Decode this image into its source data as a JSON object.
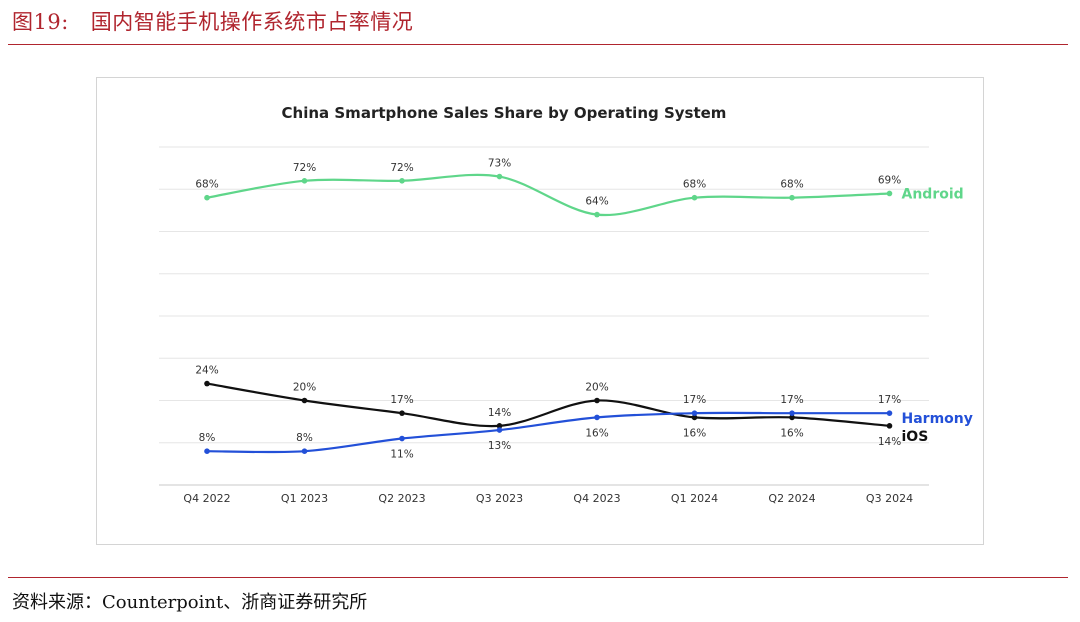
{
  "figure": {
    "number": "图19:",
    "title": "国内智能手机操作系统市占率情况",
    "source": "资料来源：Counterpoint、浙商证券研究所"
  },
  "chart_data": {
    "type": "line",
    "title": "China Smartphone Sales Share by Operating System",
    "categories": [
      "Q4 2022",
      "Q1 2023",
      "Q2 2023",
      "Q3 2023",
      "Q4 2023",
      "Q1 2024",
      "Q2 2024",
      "Q3 2024"
    ],
    "series": [
      {
        "name": "Android",
        "values": [
          68,
          72,
          72,
          73,
          64,
          68,
          68,
          69
        ],
        "labels": [
          "68%",
          "72%",
          "72%",
          "73%",
          "64%",
          "68%",
          "68%",
          "69%"
        ],
        "label_pos": [
          "above",
          "above",
          "above",
          "above",
          "above",
          "above",
          "above",
          "above"
        ],
        "color": "#5fd68a"
      },
      {
        "name": "iOS",
        "values": [
          24,
          20,
          17,
          14,
          20,
          16,
          16,
          14
        ],
        "labels": [
          "24%",
          "20%",
          "17%",
          "14%",
          "20%",
          "16%",
          "16%",
          "14%"
        ],
        "label_pos": [
          "above",
          "above",
          "above",
          "above",
          "above",
          "below",
          "below",
          "below"
        ],
        "color": "#111111"
      },
      {
        "name": "Harmony",
        "values": [
          8,
          8,
          11,
          13,
          16,
          17,
          17,
          17
        ],
        "labels": [
          "8%",
          "8%",
          "11%",
          "13%",
          "16%",
          "17%",
          "17%",
          "17%"
        ],
        "label_pos": [
          "above",
          "above",
          "below",
          "below",
          "below",
          "above",
          "above",
          "above"
        ],
        "color": "#2350d8"
      }
    ],
    "ylim": [
      0,
      80
    ],
    "grid": true,
    "legend": "inline labels at right end of each line"
  }
}
